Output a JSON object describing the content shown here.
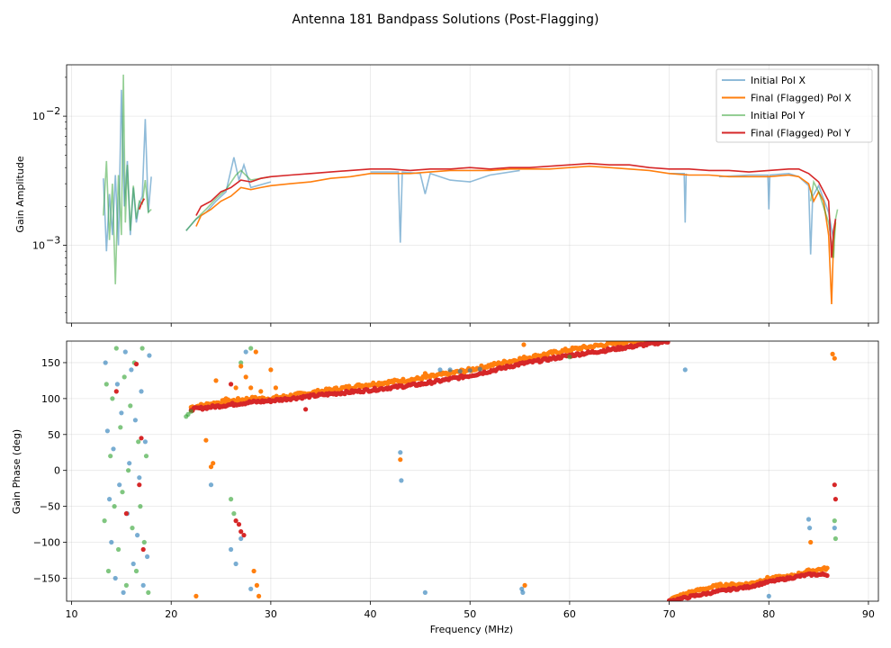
{
  "title": "Antenna 181 Bandpass Solutions (Post-Flagging)",
  "chart_data": [
    {
      "type": "line",
      "name": "amplitude",
      "ylabel": "Gain Amplitude",
      "xlabel": "",
      "xlim": [
        9.5,
        91
      ],
      "ylim": [
        0.00025,
        0.025
      ],
      "yscale": "log",
      "yticks": [
        {
          "value": 0.001,
          "label": "10",
          "exp": "−3"
        },
        {
          "value": 0.01,
          "label": "10",
          "exp": "−2"
        }
      ],
      "grid": true,
      "legend": "top-right",
      "series": [
        {
          "name": "Initial Pol X",
          "color": "#1f77b4",
          "alpha": 0.5,
          "x": [
            13.2,
            13.5,
            13.8,
            14.1,
            14.4,
            14.7,
            15.0,
            15.3,
            15.6,
            15.9,
            16.2,
            16.5,
            16.8,
            17.1,
            17.4,
            17.7,
            18.0,
            21.5,
            22.5,
            23.5,
            24.5,
            25.5,
            26.3,
            26.8,
            27.3,
            28.0,
            30,
            35,
            40,
            42.8,
            43.0,
            43.2,
            45,
            45.5,
            46,
            48,
            50,
            52,
            55,
            60,
            65,
            70,
            71.5,
            71.6,
            71.7,
            75,
            78,
            79.9,
            80.0,
            80.1,
            82,
            83,
            84.0,
            84.2,
            84.4,
            85,
            86,
            86.5,
            86.7
          ],
          "y": [
            0.0033,
            0.0009,
            0.0025,
            0.0012,
            0.0035,
            0.001,
            0.016,
            0.002,
            0.0045,
            0.0012,
            0.0028,
            0.0015,
            0.0021,
            0.0024,
            0.0095,
            0.0018,
            0.0034,
            0.0013,
            0.0016,
            0.0018,
            0.0022,
            0.0026,
            0.0048,
            0.0032,
            0.0042,
            0.0028,
            0.0031,
            0.0034,
            0.0037,
            0.0037,
            0.00105,
            0.0037,
            0.0036,
            0.0025,
            0.0036,
            0.0032,
            0.0031,
            0.0035,
            0.0038,
            0.004,
            0.0041,
            0.0036,
            0.0036,
            0.0015,
            0.0036,
            0.0034,
            0.0035,
            0.0035,
            0.0019,
            0.0035,
            0.0036,
            0.0034,
            0.0029,
            0.00085,
            0.0024,
            0.0029,
            0.0018,
            0.0011,
            0.0016
          ]
        },
        {
          "name": "Final (Flagged) Pol X",
          "color": "#ff7f0e",
          "alpha": 1.0,
          "x": [
            16.8,
            17.0,
            17.3,
            22.5,
            23,
            24,
            25,
            26,
            27,
            28,
            29,
            30,
            32,
            34,
            36,
            38,
            40,
            42,
            44,
            46,
            48,
            50,
            52,
            54,
            56,
            58,
            60,
            62,
            64,
            66,
            68,
            70,
            72,
            74,
            76,
            78,
            80,
            82,
            83,
            84,
            84.5,
            85,
            85.5,
            86,
            86.3,
            86.5,
            86.7
          ],
          "y": [
            0.0019,
            0.0021,
            0.0023,
            0.0014,
            0.0017,
            0.0019,
            0.0022,
            0.0024,
            0.0028,
            0.0027,
            0.0028,
            0.0029,
            0.003,
            0.0031,
            0.0033,
            0.0034,
            0.0036,
            0.0036,
            0.0036,
            0.0037,
            0.0038,
            0.0038,
            0.0038,
            0.0039,
            0.0039,
            0.0039,
            0.004,
            0.0041,
            0.004,
            0.0039,
            0.0038,
            0.0036,
            0.0035,
            0.0035,
            0.0034,
            0.0034,
            0.0034,
            0.0035,
            0.0034,
            0.003,
            0.0022,
            0.0026,
            0.0022,
            0.0012,
            0.00035,
            0.0011,
            0.0015
          ]
        },
        {
          "name": "Initial Pol Y",
          "color": "#2ca02c",
          "alpha": 0.5,
          "x": [
            13.2,
            13.5,
            13.8,
            14.1,
            14.4,
            14.7,
            15.0,
            15.2,
            15.4,
            15.6,
            15.9,
            16.2,
            16.5,
            16.8,
            17.1,
            17.4,
            17.7,
            18.0,
            21.5,
            22.5,
            23.5,
            24.5,
            25.5,
            26.5,
            27.0,
            28.0,
            30,
            35,
            40,
            45,
            50,
            55,
            60,
            65,
            70,
            75,
            80,
            84.2,
            84.5,
            85,
            86,
            86.5,
            86.7,
            86.9
          ],
          "y": [
            0.0017,
            0.0045,
            0.0011,
            0.003,
            0.0005,
            0.0035,
            0.0012,
            0.021,
            0.0015,
            0.0042,
            0.0013,
            0.0029,
            0.0016,
            0.0022,
            0.0021,
            0.0032,
            0.0018,
            0.0019,
            0.0013,
            0.0016,
            0.0019,
            0.0023,
            0.0027,
            0.0035,
            0.0038,
            0.0032,
            0.0034,
            0.0036,
            0.0038,
            0.0038,
            0.0039,
            0.004,
            0.0042,
            0.0041,
            0.0039,
            0.0037,
            0.0037,
            0.0022,
            0.0031,
            0.0026,
            0.0015,
            0.0008,
            0.0016,
            0.0019
          ]
        },
        {
          "name": "Final (Flagged) Pol Y",
          "color": "#d62728",
          "alpha": 1.0,
          "x": [
            16.8,
            17.0,
            17.3,
            22.5,
            23,
            24,
            25,
            26,
            27,
            28,
            29,
            30,
            32,
            34,
            36,
            38,
            40,
            42,
            44,
            46,
            48,
            50,
            52,
            54,
            56,
            58,
            60,
            62,
            64,
            66,
            68,
            70,
            72,
            74,
            76,
            78,
            80,
            82,
            83,
            84,
            85,
            86,
            86.3,
            86.5,
            86.7
          ],
          "y": [
            0.0019,
            0.0021,
            0.0023,
            0.0017,
            0.002,
            0.0022,
            0.0026,
            0.0028,
            0.0032,
            0.0031,
            0.0033,
            0.0034,
            0.0035,
            0.0036,
            0.0037,
            0.0038,
            0.0039,
            0.0039,
            0.0038,
            0.0039,
            0.0039,
            0.004,
            0.0039,
            0.004,
            0.004,
            0.0041,
            0.0042,
            0.0043,
            0.0042,
            0.0042,
            0.004,
            0.0039,
            0.0039,
            0.0038,
            0.0038,
            0.0037,
            0.0038,
            0.0039,
            0.0039,
            0.0036,
            0.0031,
            0.0022,
            0.0008,
            0.0013,
            0.0016
          ]
        }
      ]
    },
    {
      "type": "scatter",
      "name": "phase",
      "ylabel": "Gain Phase (deg)",
      "xlabel": "Frequency (MHz)",
      "xlim": [
        9.5,
        91
      ],
      "ylim": [
        -182,
        180
      ],
      "xticks": [
        10,
        20,
        30,
        40,
        50,
        60,
        70,
        80,
        90
      ],
      "yticks": [
        -150,
        -100,
        -50,
        0,
        50,
        100,
        150
      ],
      "grid": true,
      "series": [
        {
          "name": "Initial Pol X",
          "color": "#1f77b4",
          "alpha": 0.6,
          "points": [
            [
              13.4,
              150
            ],
            [
              13.6,
              55
            ],
            [
              13.8,
              -40
            ],
            [
              14.0,
              -100
            ],
            [
              14.2,
              30
            ],
            [
              14.4,
              -150
            ],
            [
              14.6,
              120
            ],
            [
              14.8,
              -20
            ],
            [
              15.0,
              80
            ],
            [
              15.2,
              -170
            ],
            [
              15.4,
              165
            ],
            [
              15.6,
              -60
            ],
            [
              15.8,
              10
            ],
            [
              16.0,
              140
            ],
            [
              16.2,
              -130
            ],
            [
              16.4,
              70
            ],
            [
              16.6,
              -90
            ],
            [
              16.8,
              -10
            ],
            [
              17.0,
              110
            ],
            [
              17.2,
              -160
            ],
            [
              17.4,
              40
            ],
            [
              17.6,
              -120
            ],
            [
              17.8,
              160
            ],
            [
              24.0,
              -20
            ],
            [
              26.0,
              -110
            ],
            [
              26.5,
              -130
            ],
            [
              27.0,
              -95
            ],
            [
              27.5,
              165
            ],
            [
              28.0,
              -165
            ],
            [
              43.0,
              25
            ],
            [
              43.1,
              -14
            ],
            [
              45.5,
              -170
            ],
            [
              55.2,
              -165
            ],
            [
              55.3,
              -170
            ],
            [
              71.6,
              140
            ],
            [
              80.0,
              -175
            ],
            [
              84.0,
              -68
            ],
            [
              84.1,
              -80
            ],
            [
              86.6,
              -80
            ],
            [
              47,
              140
            ],
            [
              48,
              140
            ],
            [
              49,
              138
            ],
            [
              50,
              139
            ],
            [
              51,
              141
            ]
          ]
        },
        {
          "name": "Initial Pol Y",
          "color": "#2ca02c",
          "alpha": 0.6,
          "points": [
            [
              13.3,
              -70
            ],
            [
              13.5,
              120
            ],
            [
              13.7,
              -140
            ],
            [
              13.9,
              20
            ],
            [
              14.1,
              100
            ],
            [
              14.3,
              -50
            ],
            [
              14.5,
              170
            ],
            [
              14.7,
              -110
            ],
            [
              14.9,
              60
            ],
            [
              15.1,
              -30
            ],
            [
              15.3,
              130
            ],
            [
              15.5,
              -160
            ],
            [
              15.7,
              0
            ],
            [
              15.9,
              90
            ],
            [
              16.1,
              -80
            ],
            [
              16.3,
              150
            ],
            [
              16.5,
              -140
            ],
            [
              16.7,
              40
            ],
            [
              16.9,
              -50
            ],
            [
              17.1,
              170
            ],
            [
              17.3,
              -100
            ],
            [
              17.5,
              20
            ],
            [
              17.7,
              -170
            ],
            [
              21.5,
              75
            ],
            [
              21.7,
              78
            ],
            [
              22.0,
              82
            ],
            [
              26.0,
              -40
            ],
            [
              26.3,
              -60
            ],
            [
              27.0,
              150
            ],
            [
              28.0,
              170
            ],
            [
              60,
              158
            ],
            [
              86.6,
              -70
            ],
            [
              86.7,
              -95
            ]
          ]
        },
        {
          "name": "Final (Flagged) Pol X",
          "color": "#ff7f0e",
          "alpha": 1.0,
          "points": [
            [
              22.5,
              -175
            ],
            [
              23.5,
              42
            ],
            [
              24.0,
              5
            ],
            [
              24.2,
              10
            ],
            [
              24.5,
              125
            ],
            [
              25.5,
              100
            ],
            [
              26.5,
              115
            ],
            [
              27.0,
              145
            ],
            [
              27.5,
              130
            ],
            [
              28.0,
              115
            ],
            [
              28.5,
              165
            ],
            [
              29,
              110
            ],
            [
              30,
              140
            ],
            [
              30.5,
              115
            ],
            [
              43.0,
              15
            ],
            [
              45.5,
              135
            ],
            [
              55.4,
              175
            ],
            [
              55.5,
              -160
            ],
            [
              28.3,
              -140
            ],
            [
              28.6,
              -160
            ],
            [
              28.8,
              -175
            ],
            [
              84.2,
              -100
            ],
            [
              86.4,
              162
            ],
            [
              86.6,
              156
            ]
          ]
        },
        {
          "name": "Final (Flagged) Pol Y",
          "color": "#d62728",
          "alpha": 1.0,
          "points": [
            [
              14.5,
              110
            ],
            [
              15.5,
              -60
            ],
            [
              16.5,
              148
            ],
            [
              17.0,
              45
            ],
            [
              16.8,
              -20
            ],
            [
              17.2,
              -110
            ],
            [
              26.5,
              -70
            ],
            [
              26.8,
              -75
            ],
            [
              27.0,
              -85
            ],
            [
              27.3,
              -90
            ],
            [
              33.5,
              85
            ],
            [
              26.0,
              120
            ],
            [
              86.6,
              -20
            ],
            [
              86.7,
              -40
            ]
          ]
        }
      ],
      "bands": [
        {
          "series": "Final (Flagged) Pol X",
          "color": "#ff7f0e",
          "x": [
            22,
            25,
            28,
            30,
            35,
            40,
            45,
            50,
            55,
            60,
            65,
            68,
            70
          ],
          "y": [
            88,
            95,
            100,
            100,
            110,
            120,
            128,
            140,
            155,
            168,
            178,
            182,
            185
          ],
          "spread": 5
        },
        {
          "series": "Final (Flagged) Pol Y",
          "color": "#d62728",
          "x": [
            22,
            25,
            28,
            30,
            35,
            40,
            45,
            50,
            55,
            60,
            65,
            70
          ],
          "y": [
            85,
            90,
            95,
            97,
            105,
            112,
            120,
            132,
            148,
            160,
            170,
            180
          ],
          "spread": 4
        },
        {
          "series": "Final (Flagged) Pol X",
          "color": "#ff7f0e",
          "x": [
            70,
            72,
            75,
            78,
            80,
            82,
            84,
            86
          ],
          "y": [
            -180,
            -170,
            -160,
            -158,
            -150,
            -148,
            -140,
            -136
          ],
          "spread": 4
        },
        {
          "series": "Final (Flagged) Pol Y",
          "color": "#d62728",
          "x": [
            70,
            72,
            75,
            78,
            80,
            82,
            84,
            86
          ],
          "y": [
            -182,
            -176,
            -168,
            -162,
            -155,
            -150,
            -145,
            -145
          ],
          "spread": 3
        }
      ]
    }
  ]
}
